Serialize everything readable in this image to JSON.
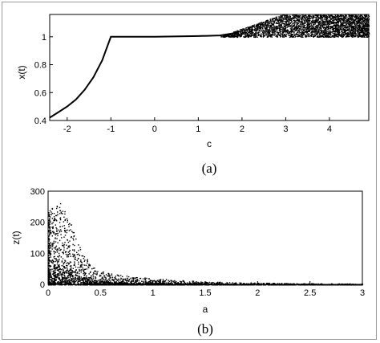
{
  "figure": {
    "caption_a": "(a)",
    "caption_b": "(b)"
  },
  "chart_data": [
    {
      "type": "line",
      "panel": "(a)",
      "title": "",
      "xlabel": "c",
      "ylabel": "x(t)",
      "xlim": [
        -2.4,
        4.9
      ],
      "ylim": [
        0.4,
        1.16
      ],
      "xticks": [
        -2,
        -1,
        0,
        1,
        2,
        3,
        4
      ],
      "yticks": [
        0.4,
        0.6,
        0.8,
        1
      ],
      "grid": false,
      "series": [
        {
          "x": [
            -2.4,
            -2.2,
            -2.0,
            -1.8,
            -1.6,
            -1.4,
            -1.2,
            -1.0,
            0.0,
            1.0,
            1.5,
            1.7,
            1.9
          ],
          "y": [
            0.42,
            0.46,
            0.5,
            0.55,
            0.62,
            0.71,
            0.83,
            1.0,
            1.0,
            1.005,
            1.01,
            1.02,
            1.03
          ]
        }
      ],
      "scatter_region": {
        "x_from": 1.5,
        "x_to": 4.9,
        "y_band": [
          1.0,
          1.16
        ]
      }
    },
    {
      "type": "scatter",
      "panel": "(b)",
      "title": "",
      "xlabel": "a",
      "ylabel": "z(t)",
      "xlim": [
        0,
        3
      ],
      "ylim": [
        0,
        300
      ],
      "xticks": [
        0,
        0.5,
        1,
        1.5,
        2,
        2.5,
        3
      ],
      "yticks": [
        0,
        100,
        200,
        300
      ],
      "grid": false,
      "envelope": {
        "x": [
          0.0,
          0.05,
          0.1,
          0.15,
          0.2,
          0.3,
          0.4,
          0.5,
          0.7,
          1.0,
          1.5,
          2.0,
          2.5,
          3.0
        ],
        "ymax": [
          240,
          260,
          270,
          240,
          210,
          120,
          70,
          45,
          30,
          20,
          10,
          6,
          4,
          3
        ]
      }
    }
  ]
}
